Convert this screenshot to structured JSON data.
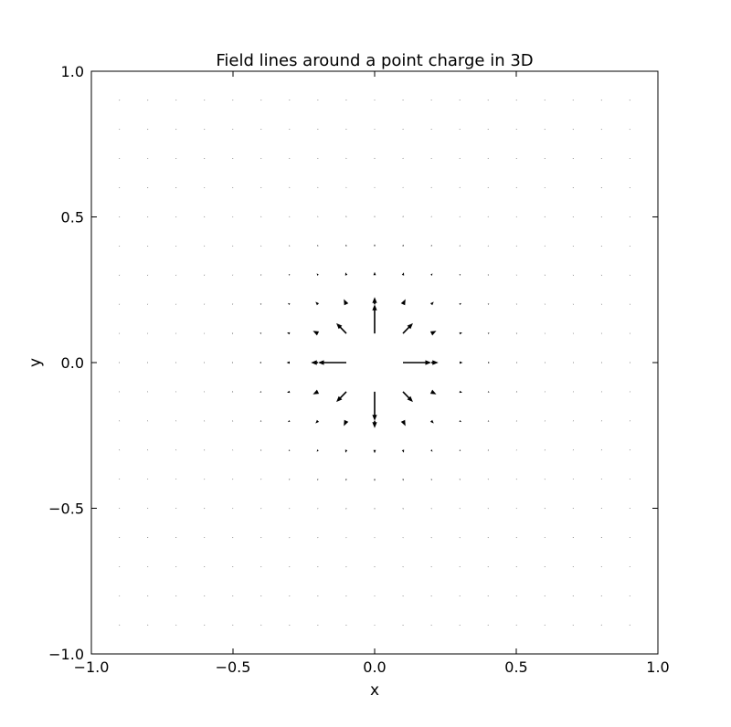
{
  "chart_data": {
    "type": "quiver",
    "title": "Field lines around a point charge in 3D",
    "xlabel": "x",
    "ylabel": "y",
    "xlim": [
      -1.0,
      1.0
    ],
    "ylim": [
      -1.0,
      1.0
    ],
    "x_ticks": [
      -1.0,
      -0.5,
      0.0,
      0.5,
      1.0
    ],
    "y_ticks": [
      -1.0,
      -0.5,
      0.0,
      0.5,
      1.0
    ],
    "x_tick_labels": [
      "−1.0",
      "−0.5",
      "0.0",
      "0.5",
      "1.0"
    ],
    "y_tick_labels": [
      "−1.0",
      "−0.5",
      "0.0",
      "0.5",
      "1.0"
    ],
    "grid": false,
    "arrow_color": "#000000",
    "grid_points": {
      "x_start": -0.9,
      "x_end": 0.9,
      "y_start": -0.9,
      "y_end": 0.9,
      "step": 0.1
    },
    "field": {
      "charge_position": [
        0.0,
        0.0
      ],
      "law": "vector = r_hat / r^3",
      "arrow_scale_data_units": 0.001
    }
  }
}
